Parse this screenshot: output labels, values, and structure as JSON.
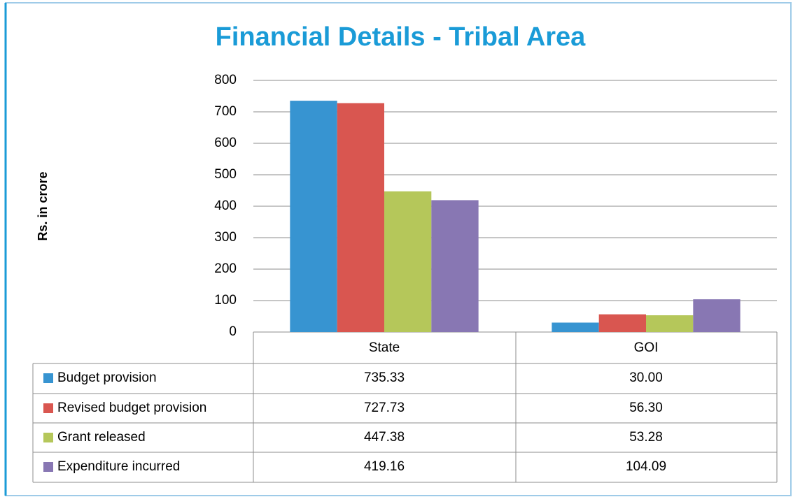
{
  "chart_data": {
    "type": "bar",
    "title": "Financial Details - Tribal Area",
    "ylabel": "Rs. in crore",
    "categories": [
      "State",
      "GOI"
    ],
    "series": [
      {
        "name": "Budget provision",
        "color": "#3794d1",
        "values": [
          735.33,
          30
        ],
        "value_labels": [
          "735.33",
          "30.00"
        ]
      },
      {
        "name": "Revised budget provision",
        "color": "#d95650",
        "values": [
          727.73,
          56.3
        ],
        "value_labels": [
          "727.73",
          "56.30"
        ]
      },
      {
        "name": "Grant released",
        "color": "#b5c75a",
        "values": [
          447.38,
          53.28
        ],
        "value_labels": [
          "447.38",
          "53.28"
        ]
      },
      {
        "name": "Expenditure incurred",
        "color": "#8877b3",
        "values": [
          419.16,
          104.09
        ],
        "value_labels": [
          "419.16",
          "104.09"
        ]
      }
    ],
    "ylim": [
      0,
      800
    ],
    "yticks": [
      0,
      100,
      200,
      300,
      400,
      500,
      600,
      700,
      800
    ],
    "grid": true
  }
}
